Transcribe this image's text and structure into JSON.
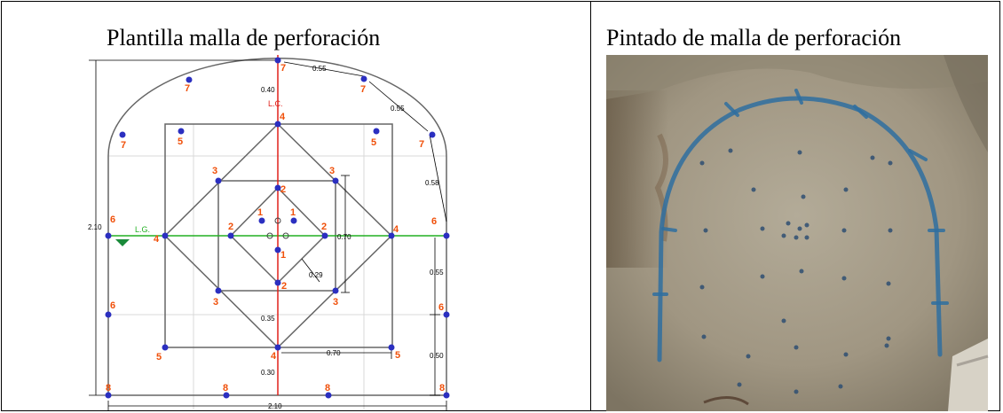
{
  "panels": {
    "left_title": "Plantilla malla de perforación",
    "right_title": "Pintado de malla de perforación"
  },
  "labels": {
    "lc": "L.C.",
    "lg": "L.G."
  },
  "dimensions": {
    "top_chord_1": "0.55",
    "top_chord_2": "0.55",
    "crown_to_center": "0.40",
    "side_arc": "0.58",
    "total_height": "2.10",
    "total_width": "2.10",
    "inner_square": "0.70",
    "diagonal": "0.29",
    "center_to_lower": "0.35",
    "lower_width": "0.70",
    "right_wall_upper": "0.55",
    "right_wall_lower": "0.50",
    "floor_gap": "0.30"
  },
  "holes": {
    "h1a": "1",
    "h1b": "1",
    "h1c": "1",
    "h2a": "2",
    "h2b": "2",
    "h2c": "2",
    "h2d": "2",
    "h3a": "3",
    "h3b": "3",
    "h3c": "3",
    "h3d": "3",
    "h4a": "4",
    "h4b": "4",
    "h4c": "4",
    "h4d": "4",
    "h5a": "5",
    "h5b": "5",
    "h5c": "5",
    "h5d": "5",
    "h6a": "6",
    "h6b": "6",
    "h6c": "6",
    "h6d": "6",
    "h7a": "7",
    "h7b": "7",
    "h7c": "7",
    "h7d": "7",
    "h7e": "7",
    "h8a": "8",
    "h8b": "8",
    "h8c": "8",
    "h8d": "8"
  },
  "colors": {
    "hole": "#2b2fc0",
    "number": "#f0500a",
    "center_line": "#e0201a",
    "grade_line": "#22b022",
    "outline": "#666666",
    "paint": "#2f6fa0"
  }
}
